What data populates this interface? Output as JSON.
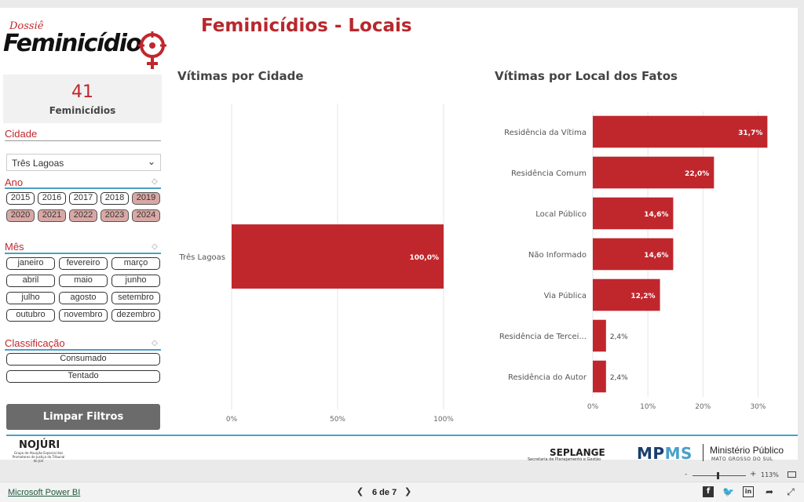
{
  "logo": {
    "small": "Dossiê",
    "big": "Feminicídio"
  },
  "page_title": "Feminicídios - Locais",
  "kpi": {
    "value": "41",
    "label": "Feminicídios"
  },
  "filters": {
    "cidade": {
      "title": "Cidade",
      "selected": "Três Lagoas"
    },
    "ano": {
      "title": "Ano",
      "options": [
        "2015",
        "2016",
        "2017",
        "2018",
        "2019",
        "2020",
        "2021",
        "2022",
        "2023",
        "2024"
      ],
      "selected": [
        "2019",
        "2020",
        "2021",
        "2022",
        "2023",
        "2024"
      ]
    },
    "mes": {
      "title": "Mês",
      "options": [
        "janeiro",
        "fevereiro",
        "março",
        "abril",
        "maio",
        "junho",
        "julho",
        "agosto",
        "setembro",
        "outubro",
        "novembro",
        "dezembro"
      ]
    },
    "classificacao": {
      "title": "Classificação",
      "options": [
        "Consumado",
        "Tentado"
      ]
    },
    "clear_label": "Limpar Filtros"
  },
  "chart_data": [
    {
      "type": "bar",
      "orientation": "horizontal",
      "title": "Vítimas por Cidade",
      "categories": [
        "Três Lagoas"
      ],
      "values": [
        100.0
      ],
      "value_labels": [
        "100,0%"
      ],
      "xlim": [
        0,
        100
      ],
      "xticks": [
        "0%",
        "50%",
        "100%"
      ],
      "bar_color": "#c0272d",
      "grid": true
    },
    {
      "type": "bar",
      "orientation": "horizontal",
      "title": "Vítimas por Local dos Fatos",
      "categories": [
        "Residência da Vítima",
        "Residência Comum",
        "Local Público",
        "Não Informado",
        "Via Pública",
        "Residência de Tercei...",
        "Residência do Autor"
      ],
      "values": [
        31.7,
        22.0,
        14.6,
        14.6,
        12.2,
        2.4,
        2.4
      ],
      "value_labels": [
        "31,7%",
        "22,0%",
        "14,6%",
        "14,6%",
        "12,2%",
        "2,4%",
        "2,4%"
      ],
      "xlim": [
        0,
        32.5
      ],
      "xticks": [
        "0%",
        "10%",
        "20%",
        "30%"
      ],
      "xtick_values": [
        0,
        10,
        20,
        30
      ],
      "bar_color": "#c0272d",
      "grid": true
    }
  ],
  "footer": {
    "nojuri": "NOJÚRI",
    "nojuri_sub": "Grupo de Atuação Especial dos Promotores de Justiça do Tribunal do Júri",
    "seplange": "SEPLANGE",
    "seplange_sub": "Secretaria de Planejamento e Gestão",
    "mpms_mp": "MP",
    "mpms_ms": "MS",
    "mp_name": "Ministério Público",
    "mp_sub": "MATO GROSSO DO SUL"
  },
  "zoom": {
    "minus": "-",
    "plus": "+",
    "percent": "113%",
    "level": 0.47
  },
  "status": {
    "app_link": "Microsoft Power BI",
    "pager": "6 de 7",
    "prev_icon": "chevron-left-icon",
    "next_icon": "chevron-right-icon"
  },
  "colors": {
    "accent": "#c0272d",
    "blue": "#4aa0c9",
    "selected_pill": "#d9a8a4",
    "button": "#6b6b6b"
  }
}
